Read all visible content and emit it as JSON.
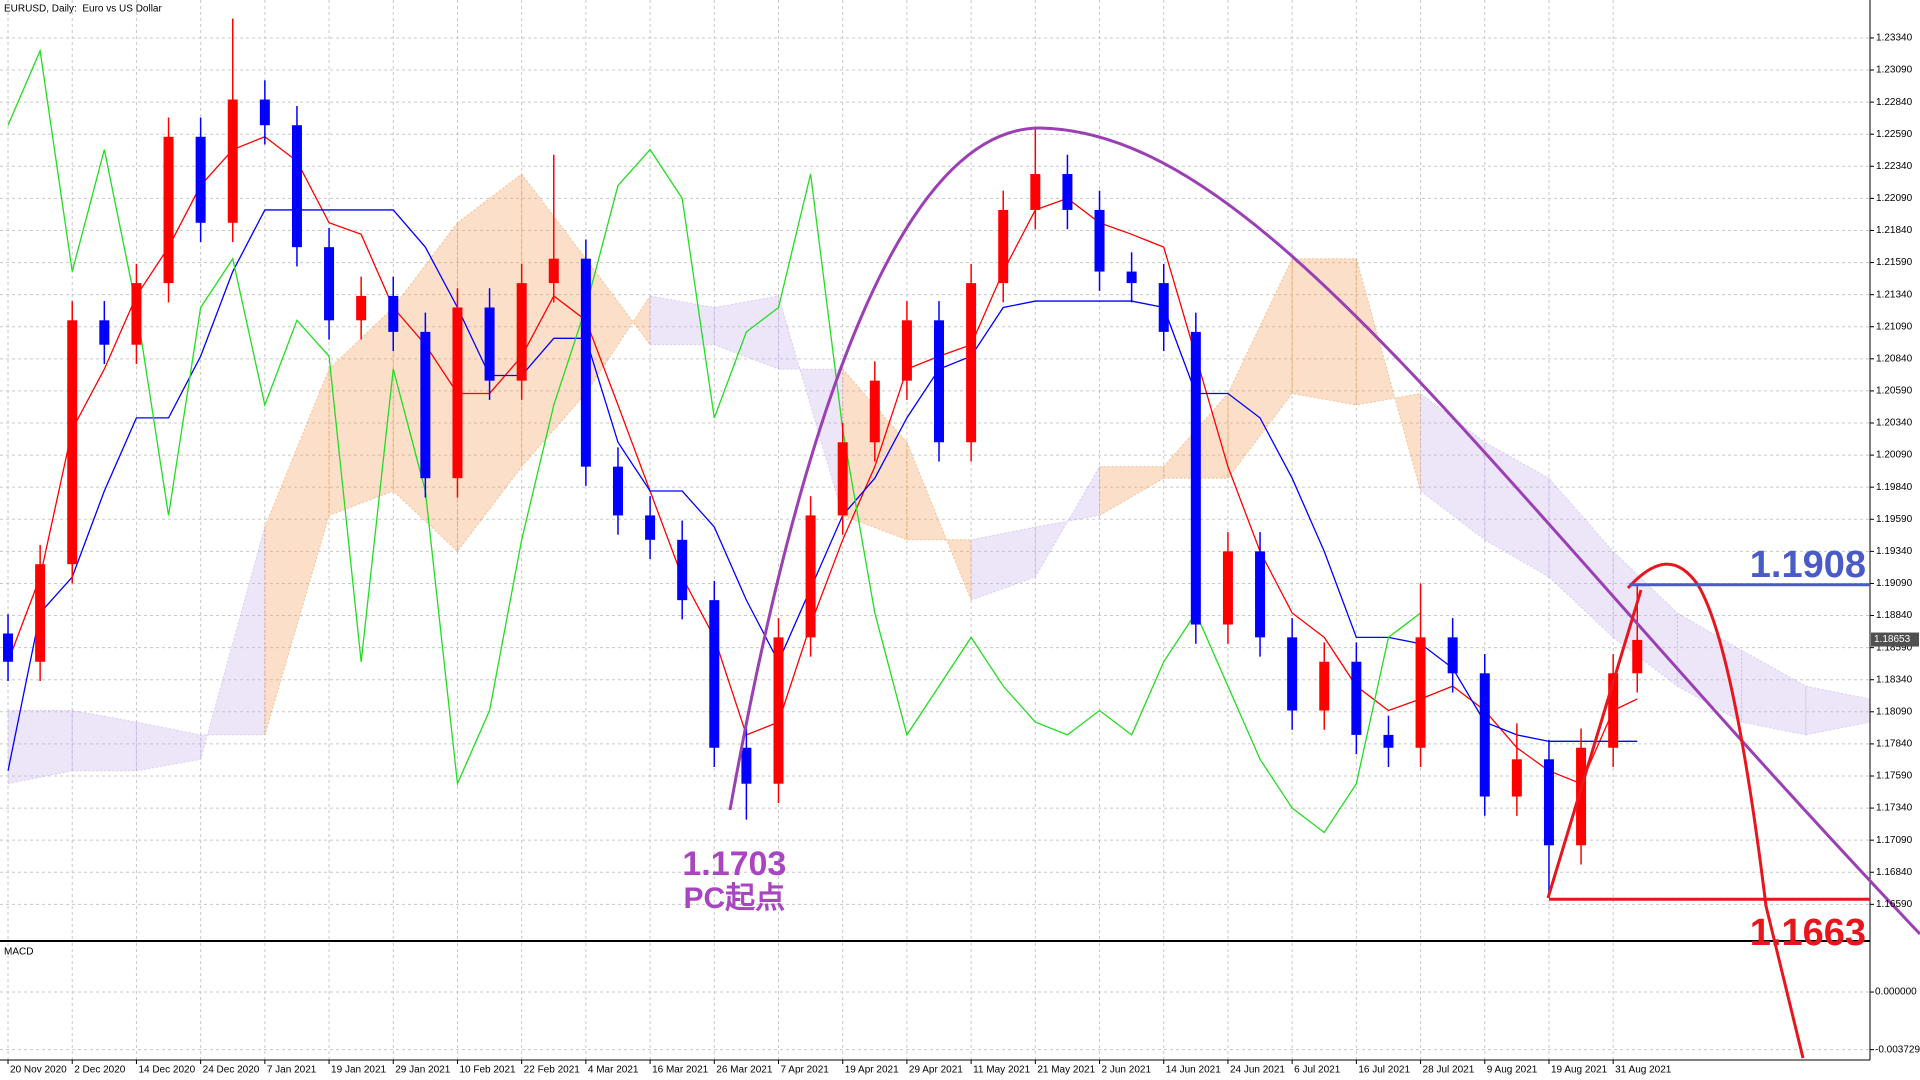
{
  "chart_data": {
    "type": "candlestick",
    "title": "EURUSD, Daily:  Euro vs US Dollar",
    "x": [
      0,
      4,
      8,
      12,
      16,
      20,
      24,
      28,
      32,
      36,
      40,
      44,
      48,
      52,
      56,
      60,
      64,
      68,
      72,
      76,
      80,
      84,
      88,
      92,
      96,
      100,
      104,
      108,
      112,
      116,
      120,
      124,
      128,
      132,
      136,
      140,
      144,
      148,
      152,
      156,
      160,
      164,
      168,
      172,
      176,
      180,
      184,
      188,
      192,
      196,
      200,
      203
    ],
    "open": [
      1.187,
      1.1848,
      1.1924,
      1.2114,
      1.2095,
      1.2143,
      1.2257,
      1.219,
      1.2286,
      1.2266,
      1.2171,
      1.2114,
      1.2133,
      1.2105,
      1.1991,
      1.2124,
      1.2067,
      1.2143,
      1.2162,
      1.2,
      1.1962,
      1.1943,
      1.1896,
      1.1781,
      1.1753,
      1.1867,
      1.1962,
      1.2019,
      1.2067,
      1.2114,
      1.2019,
      1.2143,
      1.22,
      1.2228,
      1.22,
      1.2152,
      1.2143,
      1.2105,
      1.1877,
      1.1934,
      1.1867,
      1.181,
      1.1848,
      1.1791,
      1.1781,
      1.1867,
      1.1839,
      1.1743,
      1.1772,
      1.1705,
      1.1781,
      1.1839
    ],
    "high": [
      1.1885,
      1.1939,
      1.2129,
      1.2129,
      1.2158,
      1.2272,
      1.2272,
      1.2349,
      1.2301,
      1.2281,
      1.2186,
      1.2148,
      1.2148,
      1.212,
      1.2139,
      1.2139,
      1.2158,
      1.2243,
      1.2177,
      1.2015,
      1.1977,
      1.1958,
      1.1911,
      1.1796,
      1.1882,
      1.1977,
      1.2034,
      1.2082,
      1.2129,
      1.2129,
      1.2158,
      1.2215,
      1.2265,
      1.2243,
      1.2215,
      1.2167,
      1.2158,
      1.212,
      1.1949,
      1.1949,
      1.1882,
      1.1863,
      1.1863,
      1.1806,
      1.1909,
      1.1882,
      1.1854,
      1.18,
      1.1787,
      1.1796,
      1.1854,
      1.1909
    ],
    "low": [
      1.1833,
      1.1833,
      1.1909,
      1.208,
      1.208,
      1.2128,
      1.2175,
      1.2175,
      1.2251,
      1.2156,
      1.2099,
      1.2099,
      1.209,
      1.1976,
      1.1976,
      1.2052,
      1.2052,
      1.2128,
      1.1985,
      1.1947,
      1.1928,
      1.1881,
      1.1766,
      1.1725,
      1.1738,
      1.1852,
      1.1947,
      1.2004,
      1.2052,
      1.2004,
      1.2004,
      1.2128,
      1.2185,
      1.2185,
      1.2137,
      1.2128,
      1.209,
      1.1862,
      1.1862,
      1.1852,
      1.1795,
      1.1795,
      1.1776,
      1.1766,
      1.1766,
      1.1824,
      1.1728,
      1.1728,
      1.1664,
      1.169,
      1.1766,
      1.1824
    ],
    "close": [
      1.1848,
      1.1924,
      1.2114,
      1.2095,
      1.2143,
      1.2257,
      1.219,
      1.2286,
      1.2266,
      1.2171,
      1.2114,
      1.2133,
      1.2105,
      1.1991,
      1.2124,
      1.2067,
      1.2143,
      1.2162,
      1.2,
      1.1962,
      1.1943,
      1.1896,
      1.1781,
      1.1753,
      1.1867,
      1.1962,
      1.2019,
      1.2067,
      1.2114,
      1.2019,
      1.2143,
      1.22,
      1.2228,
      1.22,
      1.2152,
      1.2143,
      1.2105,
      1.1877,
      1.1934,
      1.1867,
      1.181,
      1.1848,
      1.1791,
      1.1781,
      1.1867,
      1.1839,
      1.1743,
      1.1772,
      1.1705,
      1.1781,
      1.1839,
      1.1865
    ],
    "up_color": "#ff0000",
    "down_color": "#0000ff",
    "lines": [
      {
        "color": "#ff0000",
        "values": [
          1.1848,
          1.1914,
          1.2029,
          1.2076,
          1.2133,
          1.2171,
          1.2219,
          1.2247,
          1.2257,
          1.2238,
          1.219,
          1.2181,
          1.2124,
          1.2095,
          1.2057,
          1.2057,
          1.2086,
          1.2133,
          1.2114,
          1.2048,
          1.1981,
          1.1914,
          1.1867,
          1.1791,
          1.1801,
          1.1877,
          1.1943,
          1.2,
          1.2076,
          1.2086,
          1.2095,
          1.2152,
          1.22,
          1.2209,
          1.219,
          1.2181,
          1.2171,
          1.2086,
          1.2,
          1.1934,
          1.1886,
          1.1867,
          1.1829,
          1.181,
          1.1819,
          1.1829,
          1.181,
          1.1781,
          1.1763,
          1.1753,
          1.181,
          1.1819
        ]
      },
      {
        "color": "#0000ff",
        "values": [
          1.1763,
          1.1886,
          1.1914,
          1.1981,
          1.2038,
          1.2038,
          1.2086,
          1.2152,
          1.22,
          1.22,
          1.22,
          1.22,
          1.22,
          1.2171,
          1.2124,
          1.2071,
          1.2071,
          1.21,
          1.21,
          1.2019,
          1.1981,
          1.1981,
          1.1953,
          1.1896,
          1.1848,
          1.1905,
          1.1962,
          1.1991,
          1.2038,
          1.2076,
          1.2086,
          1.2124,
          1.2129,
          1.2129,
          1.2129,
          1.2129,
          1.2124,
          1.2057,
          1.2057,
          1.2038,
          1.1991,
          1.1934,
          1.1867,
          1.1867,
          1.1862,
          1.1843,
          1.1801,
          1.1791,
          1.1786,
          1.1786,
          1.1786,
          1.1786
        ]
      },
      {
        "color": "#22dd22",
        "values": [
          1.2266,
          1.2324,
          1.2152,
          1.2247,
          1.2124,
          1.1962,
          1.2124,
          1.2162,
          1.2048,
          1.2114,
          1.2086,
          1.1848,
          1.2076,
          1.1981,
          1.1753,
          1.181,
          1.1943,
          1.2048,
          1.2124,
          1.2219,
          1.2247,
          1.2209,
          1.2038,
          1.2105,
          1.2124,
          1.2228,
          1.2029,
          1.1886,
          1.1791,
          1.1829,
          1.1867,
          1.1829,
          1.1801,
          1.1791,
          1.181,
          1.1791,
          1.1848,
          1.1886,
          1.1829,
          1.1772,
          1.1734,
          1.1715,
          1.1753,
          1.1867,
          1.1886,
          null,
          null,
          null,
          null,
          null,
          null,
          null
        ]
      }
    ],
    "cloud": {
      "x": [
        0,
        8,
        16,
        24,
        32,
        40,
        48,
        56,
        64,
        72,
        80,
        88,
        96,
        104,
        112,
        120,
        128,
        136,
        144,
        152,
        160,
        168,
        176,
        184,
        192,
        200,
        208,
        216,
        224,
        232
      ],
      "span_a": [
        1.1753,
        1.1763,
        1.1763,
        1.1772,
        1.1953,
        1.2076,
        1.2124,
        1.219,
        1.2228,
        1.2162,
        1.2095,
        1.2095,
        1.2076,
        1.2076,
        1.2019,
        1.1896,
        1.1914,
        1.2,
        1.2,
        1.2057,
        1.2162,
        1.2162,
        1.1981,
        1.1943,
        1.1914,
        1.1867,
        1.1829,
        1.1801,
        1.1791,
        1.1801
      ],
      "span_b": [
        1.181,
        1.181,
        1.1801,
        1.1791,
        1.1791,
        1.1962,
        1.1981,
        1.1934,
        1.2,
        1.2057,
        1.2133,
        1.2124,
        1.2133,
        1.1962,
        1.1943,
        1.1943,
        1.1953,
        1.1962,
        1.1991,
        1.1991,
        1.2057,
        1.2048,
        1.2057,
        1.2019,
        1.1991,
        1.1934,
        1.1886,
        1.1857,
        1.1829,
        1.1819
      ],
      "up_color": "#f4a460",
      "down_color": "#c9b6ea"
    },
    "xlim": [
      -1,
      232
    ],
    "xticks": [
      {
        "value": 0,
        "label": "20 Nov 2020"
      },
      {
        "value": 8,
        "label": "2 Dec 2020"
      },
      {
        "value": 16,
        "label": "14 Dec 2020"
      },
      {
        "value": 24,
        "label": "24 Dec 2020"
      },
      {
        "value": 32,
        "label": "7 Jan 2021"
      },
      {
        "value": 40,
        "label": "19 Jan 2021"
      },
      {
        "value": 48,
        "label": "29 Jan 2021"
      },
      {
        "value": 56,
        "label": "10 Feb 2021"
      },
      {
        "value": 64,
        "label": "22 Feb 2021"
      },
      {
        "value": 72,
        "label": "4 Mar 2021"
      },
      {
        "value": 80,
        "label": "16 Mar 2021"
      },
      {
        "value": 88,
        "label": "26 Mar 2021"
      },
      {
        "value": 96,
        "label": "7 Apr 2021"
      },
      {
        "value": 104,
        "label": "19 Apr 2021"
      },
      {
        "value": 112,
        "label": "29 Apr 2021"
      },
      {
        "value": 120,
        "label": "11 May 2021"
      },
      {
        "value": 128,
        "label": "21 May 2021"
      },
      {
        "value": 136,
        "label": "2 Jun 2021"
      },
      {
        "value": 144,
        "label": "14 Jun 2021"
      },
      {
        "value": 152,
        "label": "24 Jun 2021"
      },
      {
        "value": 160,
        "label": "6 Jul 2021"
      },
      {
        "value": 168,
        "label": "16 Jul 2021"
      },
      {
        "value": 176,
        "label": "28 Jul 2021"
      },
      {
        "value": 184,
        "label": "9 Aug 2021"
      },
      {
        "value": 192,
        "label": "19 Aug 2021"
      },
      {
        "value": 200,
        "label": "31 Aug 2021"
      }
    ],
    "ylim": [
      1.1632,
      1.2362
    ],
    "yticks": [
      {
        "value": 1.1659,
        "label": "1.16590"
      },
      {
        "value": 1.1684,
        "label": "1.16840"
      },
      {
        "value": 1.1709,
        "label": "1.17090"
      },
      {
        "value": 1.1734,
        "label": "1.17340"
      },
      {
        "value": 1.1759,
        "label": "1.17590"
      },
      {
        "value": 1.1784,
        "label": "1.17840"
      },
      {
        "value": 1.1809,
        "label": "1.18090"
      },
      {
        "value": 1.1834,
        "label": "1.18340"
      },
      {
        "value": 1.1859,
        "label": "1.18590"
      },
      {
        "value": 1.1884,
        "label": "1.18840"
      },
      {
        "value": 1.1909,
        "label": "1.19090"
      },
      {
        "value": 1.1934,
        "label": "1.19340"
      },
      {
        "value": 1.1959,
        "label": "1.19590"
      },
      {
        "value": 1.1984,
        "label": "1.19840"
      },
      {
        "value": 1.2009,
        "label": "1.20090"
      },
      {
        "value": 1.2034,
        "label": "1.20340"
      },
      {
        "value": 1.2059,
        "label": "1.20590"
      },
      {
        "value": 1.2084,
        "label": "1.20840"
      },
      {
        "value": 1.2109,
        "label": "1.21090"
      },
      {
        "value": 1.2134,
        "label": "1.21340"
      },
      {
        "value": 1.2159,
        "label": "1.21590"
      },
      {
        "value": 1.2184,
        "label": "1.21840"
      },
      {
        "value": 1.2209,
        "label": "1.22090"
      },
      {
        "value": 1.2234,
        "label": "1.22340"
      },
      {
        "value": 1.2259,
        "label": "1.22590"
      },
      {
        "value": 1.2284,
        "label": "1.22840"
      },
      {
        "value": 1.2309,
        "label": "1.23090"
      },
      {
        "value": 1.2334,
        "label": "1.23340"
      }
    ],
    "grid": true,
    "last_price": 1.18653,
    "levels": [
      {
        "value": 1.1908,
        "color": "#4a5bc8"
      },
      {
        "value": 1.1663,
        "color": "#e8161c"
      }
    ],
    "start_point": {
      "value": 1.1703,
      "text": "PC起点",
      "color": "#a945c0"
    },
    "macd": {
      "title": "MACD",
      "ylim": [
        -0.00427,
        0.00311
      ],
      "yticks": [
        {
          "value": 0,
          "label": "0.000000"
        },
        {
          "value": -0.003729,
          "label": "-0.003729"
        }
      ]
    }
  }
}
